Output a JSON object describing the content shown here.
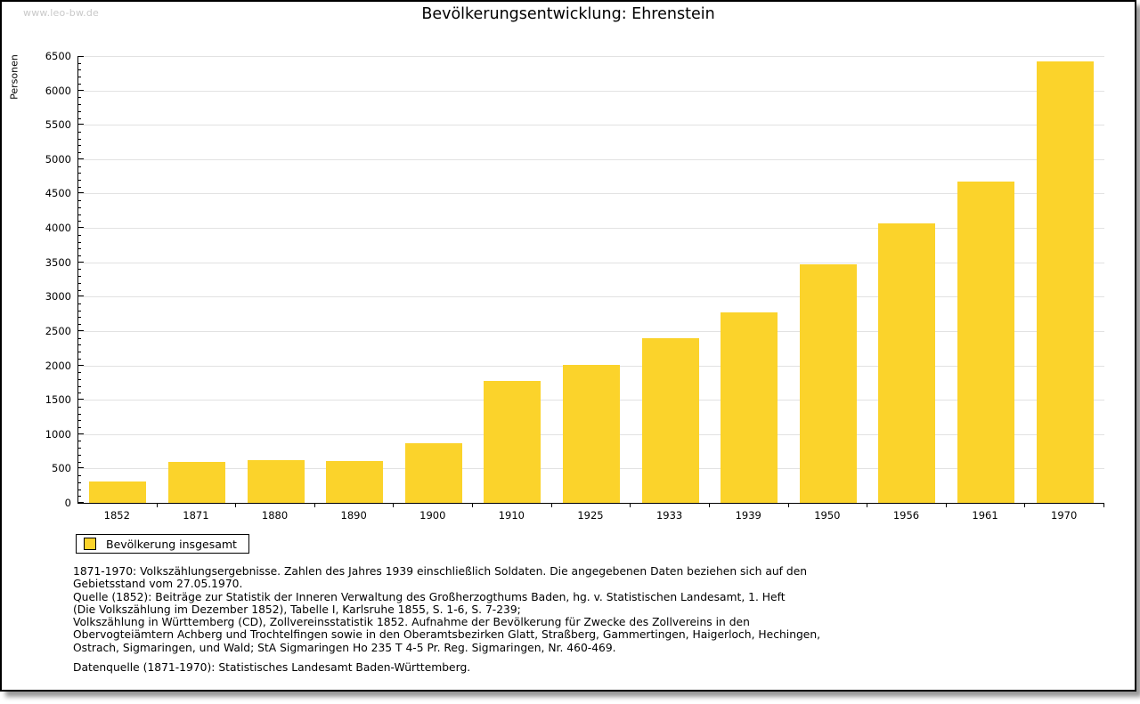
{
  "watermark": "www.leo-bw.de",
  "chart_data": {
    "type": "bar",
    "title": "Bevölkerungsentwicklung: Ehrenstein",
    "xlabel": "",
    "ylabel": "Personen",
    "categories": [
      "1852",
      "1871",
      "1880",
      "1890",
      "1900",
      "1910",
      "1925",
      "1933",
      "1939",
      "1950",
      "1956",
      "1961",
      "1970"
    ],
    "values": [
      310,
      595,
      625,
      615,
      870,
      1775,
      2005,
      2390,
      2770,
      3465,
      4070,
      4680,
      6420
    ],
    "ylim": [
      0,
      6500
    ],
    "ytick_step": 500,
    "ytick_minor_step": 100,
    "grid": "horizontal-major",
    "legend_position": "bottom-left",
    "bar_color": "#fbd32b",
    "grid_color": "#e2e2e2"
  },
  "legend": {
    "label": "Bevölkerung insgesamt",
    "swatch_color": "#fbd32b"
  },
  "footnotes": {
    "note_lines": [
      "1871-1970: Volkszählungsergebnisse. Zahlen des Jahres 1939 einschließlich Soldaten. Die angegebenen Daten beziehen sich auf den",
      "Gebietsstand vom 27.05.1970.",
      "Quelle (1852): Beiträge zur Statistik der Inneren Verwaltung des Großherzogthums Baden, hg. v. Statistischen Landesamt, 1. Heft",
      "(Die Volkszählung im Dezember 1852), Tabelle I, Karlsruhe 1855, S. 1-6, S. 7-239;",
      "Volkszählung in Württemberg (CD), Zollvereinsstatistik 1852. Aufnahme der Bevölkerung für Zwecke des Zollvereins in den",
      "Obervogteiämtern Achberg und Trochtelfingen sowie in den Oberamtsbezirken Glatt, Straßberg, Gammertingen, Haigerloch, Hechingen,",
      "Ostrach, Sigmaringen, und Wald; StA Sigmaringen Ho 235 T 4-5 Pr. Reg. Sigmaringen, Nr. 460-469."
    ],
    "source_line": "Datenquelle (1871-1970): Statistisches Landesamt Baden-Württemberg."
  }
}
